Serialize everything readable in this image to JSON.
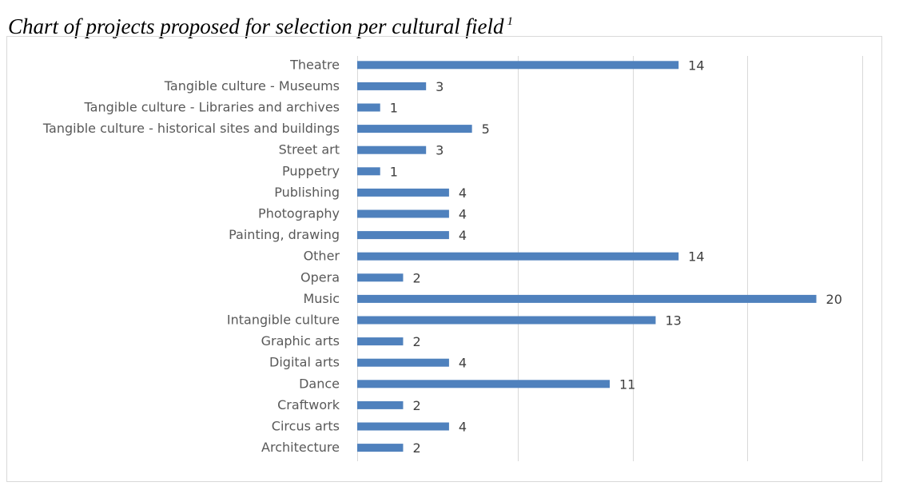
{
  "page": {
    "heading": "Chart of projects proposed for selection per cultural field",
    "footnote_mark": "1"
  },
  "chart_data": {
    "type": "bar",
    "orientation": "horizontal",
    "title": "",
    "xlabel": "",
    "ylabel": "",
    "categories": [
      "Theatre",
      "Tangible culture - Museums",
      "Tangible culture - Libraries and archives",
      "Tangible culture - historical sites and buildings",
      "Street art",
      "Puppetry",
      "Publishing",
      "Photography",
      "Painting, drawing",
      "Other",
      "Opera",
      "Music",
      "Intangible culture",
      "Graphic arts",
      "Digital arts",
      "Dance",
      "Craftwork",
      "Circus arts",
      "Architecture"
    ],
    "values": [
      14,
      3,
      1,
      5,
      3,
      1,
      4,
      4,
      4,
      14,
      2,
      20,
      13,
      2,
      4,
      11,
      2,
      4,
      2
    ],
    "xlim": [
      0,
      22
    ],
    "x_gridlines_at": [
      0,
      7,
      12,
      17,
      22
    ],
    "grid": true,
    "show_x_tick_labels": false,
    "data_labels": true,
    "legend": "none",
    "bar_color": "#4f81bd",
    "grid_color": "#d9d9d9",
    "label_color": "#595959"
  }
}
